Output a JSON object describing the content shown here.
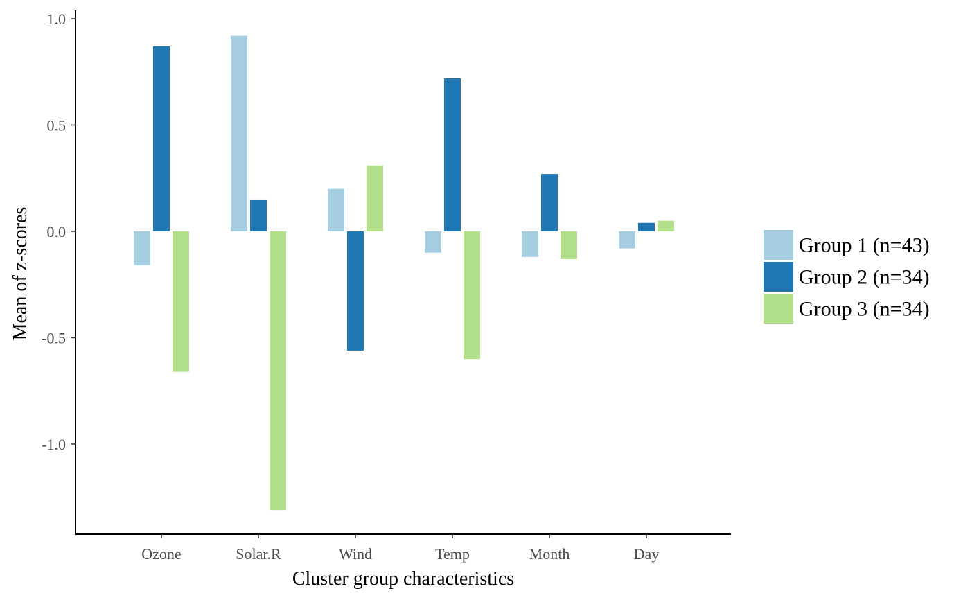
{
  "chart_data": {
    "type": "bar",
    "title": "",
    "xlabel": "Cluster group characteristics",
    "ylabel": "Mean of z-scores",
    "categories": [
      "Ozone",
      "Solar.R",
      "Wind",
      "Temp",
      "Month",
      "Day"
    ],
    "series": [
      {
        "name": "Group 1 (n=43)",
        "color": "#a6cee3",
        "values": [
          -0.16,
          0.92,
          0.2,
          -0.1,
          -0.12,
          -0.08
        ]
      },
      {
        "name": "Group 2 (n=34)",
        "color": "#1f78b4",
        "values": [
          0.87,
          0.15,
          -0.56,
          0.72,
          0.27,
          0.04
        ]
      },
      {
        "name": "Group 3 (n=34)",
        "color": "#b2df8a",
        "values": [
          -0.66,
          -1.31,
          0.31,
          -0.6,
          -0.13,
          0.05
        ]
      }
    ],
    "yticks": [
      1.0,
      0.5,
      0.0,
      -0.5,
      -1.0
    ],
    "ytick_labels": [
      "1.0",
      "0.5",
      "0.0",
      "-0.5",
      "-1.0"
    ],
    "ylim": [
      -1.41,
      1.03
    ],
    "grid": false,
    "legend_position": "right"
  }
}
